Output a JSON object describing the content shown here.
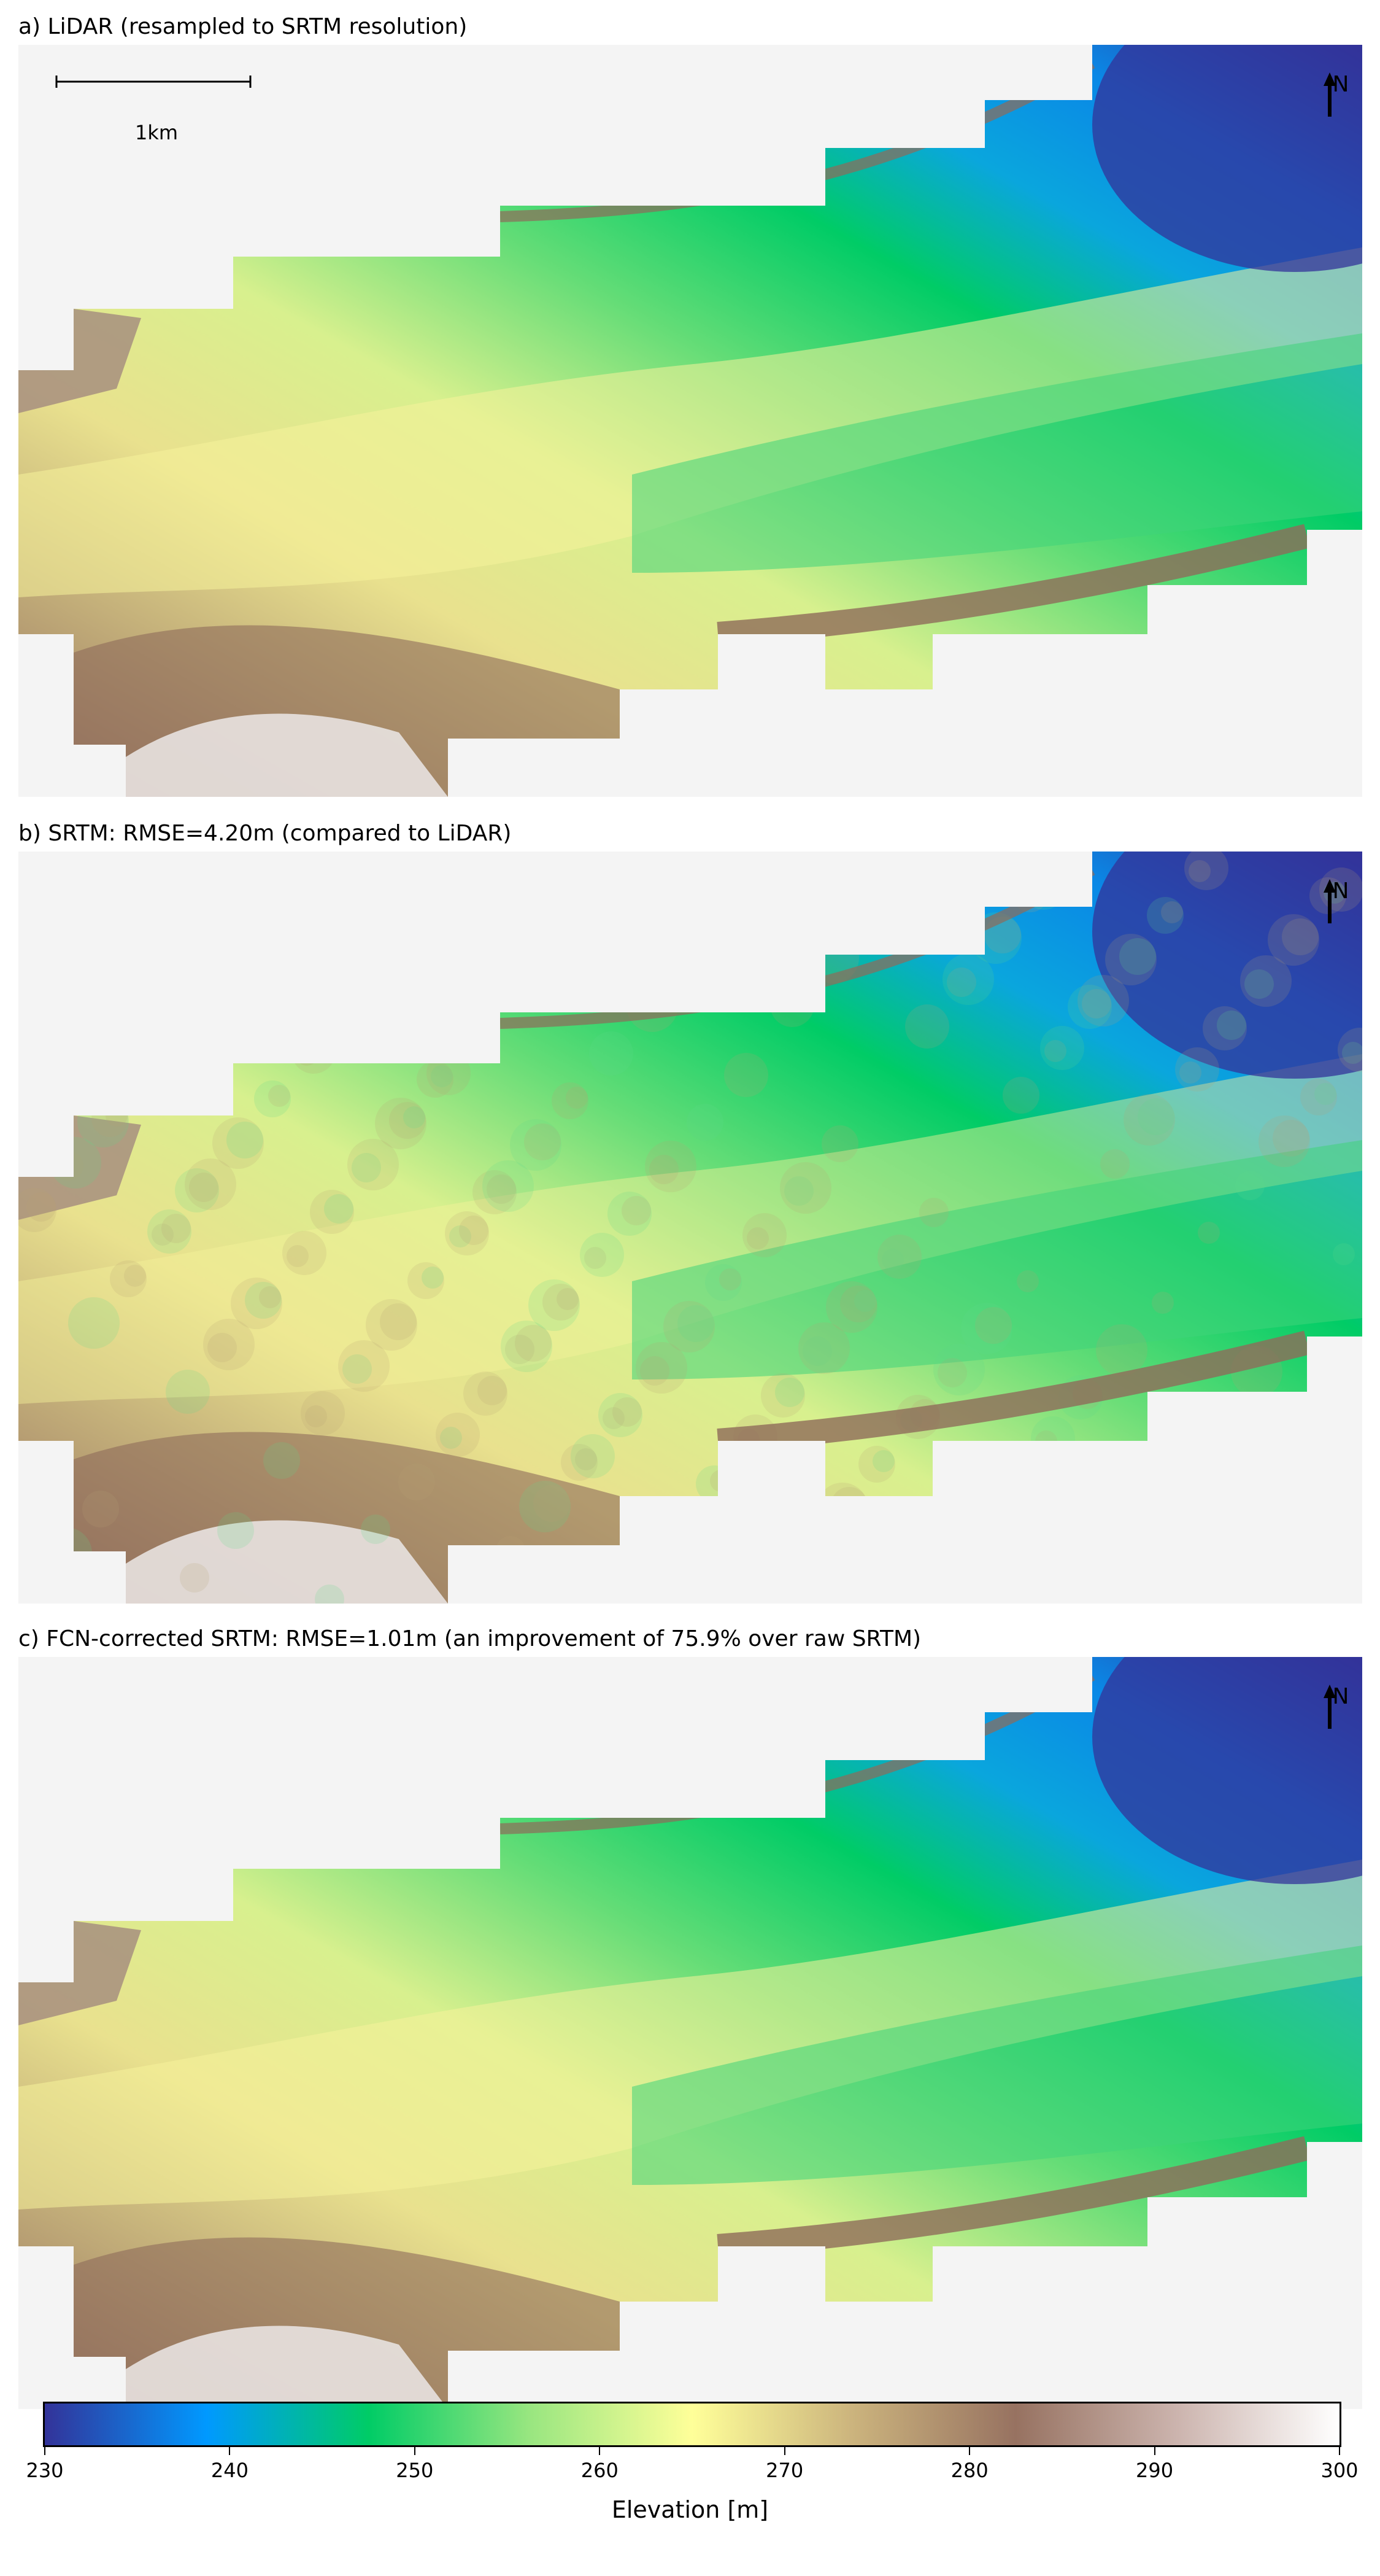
{
  "panels": [
    {
      "title": "a) LiDAR (resampled to SRTM resolution)",
      "variant": "lidar"
    },
    {
      "title": "b) SRTM: RMSE=4.20m (compared to LiDAR)",
      "variant": "srtm"
    },
    {
      "title": "c) FCN-corrected SRTM: RMSE=1.01m (an improvement of 75.9% over raw SRTM)",
      "variant": "fcn"
    }
  ],
  "north_label": "N",
  "scalebar_label": "1km",
  "colorbar": {
    "label": "Elevation [m]",
    "range": [
      230,
      300
    ],
    "ticks": [
      "230",
      "240",
      "250",
      "260",
      "270",
      "280",
      "290",
      "300"
    ],
    "colormap": "terrain",
    "stops": [
      "#333399",
      "#0099ff",
      "#00cc66",
      "#99e680",
      "#ffff99",
      "#cbb37d",
      "#977261",
      "#ccb4ae",
      "#ffffff"
    ]
  },
  "colors": {
    "nodata_background": "#f4f4f4"
  }
}
